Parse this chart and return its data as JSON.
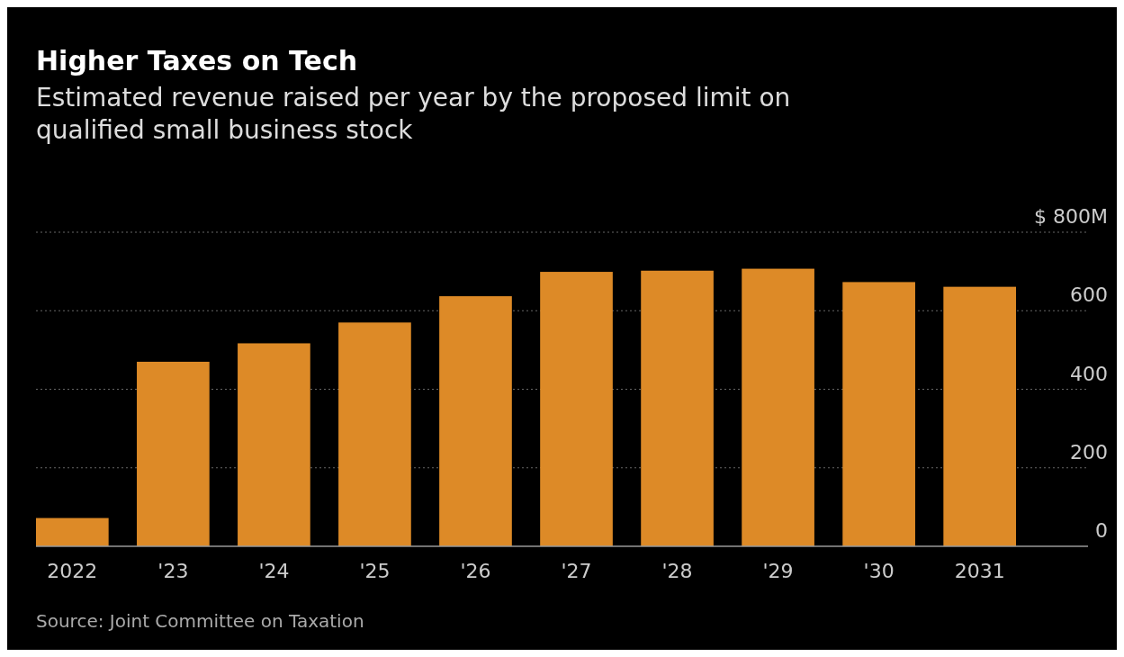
{
  "chart_data": {
    "type": "bar",
    "title": "Higher Taxes on Tech",
    "subtitle": "Estimated revenue raised per year by the proposed limit on qualified small business stock",
    "categories": [
      "2022",
      "'23",
      "'24",
      "'25",
      "'26",
      "'27",
      "'28",
      "'29",
      "'30",
      "2031"
    ],
    "values": [
      72,
      470,
      517,
      570,
      637,
      699,
      702,
      707,
      673,
      661
    ],
    "color": "#dd8a27",
    "ylim": [
      0,
      800
    ],
    "yticks": [
      0,
      200,
      400,
      600,
      {
        "value": 800,
        "label": "$ 800M"
      }
    ],
    "grid": "y",
    "annotations": [
      "Source: Joint Committee on Taxation"
    ]
  }
}
